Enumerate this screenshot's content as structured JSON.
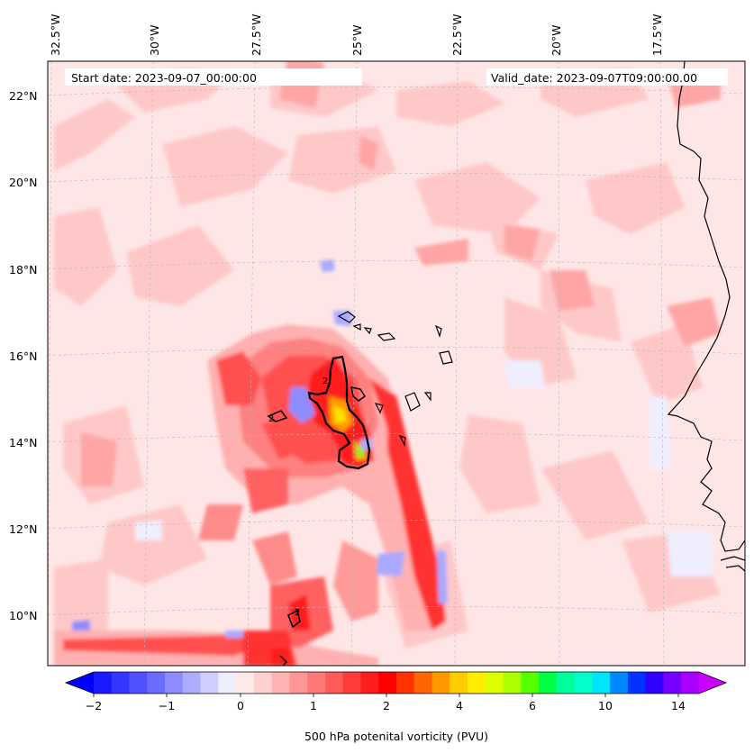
{
  "map": {
    "start_label": "Start date: 2023-09-07_00:00:00",
    "valid_label": "Valid_date: 2023-09-07T09:00:00.00",
    "lon_labels": [
      "32.5°W",
      "30°W",
      "27.5°W",
      "25°W",
      "22.5°W",
      "20°W",
      "17.5°W"
    ],
    "lat_labels": [
      "22°N",
      "20°N",
      "18°N",
      "16°N",
      "14°N",
      "12°N",
      "10°N"
    ],
    "contour_label": "2"
  },
  "colorbar": {
    "title": "500 hPa potenital vorticity (PVU)",
    "tick_labels": [
      "−2",
      "−1",
      "0",
      "1",
      "2",
      "4",
      "6",
      "10",
      "14"
    ],
    "colors": [
      "#1a1aff",
      "#3535ff",
      "#5050ff",
      "#6b6bff",
      "#8c8cff",
      "#adadff",
      "#cfcfff",
      "#eeeeff",
      "#ffe9e9",
      "#ffd0d0",
      "#ffb3b3",
      "#ff9696",
      "#ff7878",
      "#ff5a5a",
      "#ff3c3c",
      "#ff1e1e",
      "#ff0000",
      "#ff3300",
      "#ff6600",
      "#ff9900",
      "#ffcc00",
      "#ffee00",
      "#ddff00",
      "#aaff00",
      "#55ff00",
      "#00ff44",
      "#00ff99",
      "#00ffcc",
      "#00e5ff",
      "#0088ff",
      "#0033ff",
      "#3300ff",
      "#7700ff",
      "#aa00ff"
    ],
    "under_color": "#0000ff",
    "over_color": "#cc00ff"
  },
  "colors": {
    "background": "#ffe6e6",
    "light_red": "#ffc8c8",
    "mid_red": "#ff8a8a",
    "strong_red": "#ff2a2a",
    "orange": "#ff8800",
    "yellow": "#ffe000",
    "green": "#99ee22",
    "blue": "#8c8cff",
    "light_blue": "#e8e8ff"
  }
}
